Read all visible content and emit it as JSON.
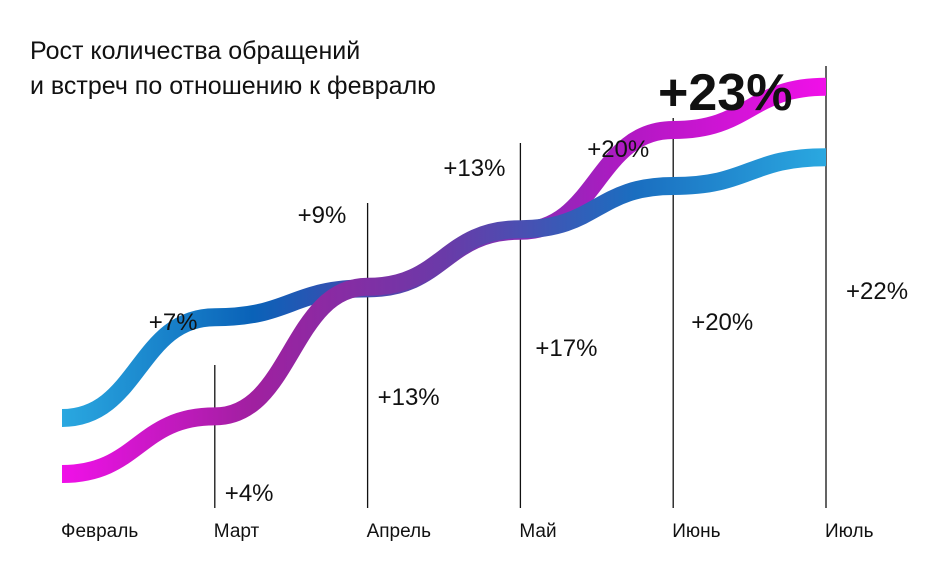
{
  "title_lines": [
    "Рост количества обращений",
    "и встреч по отношению к февралю"
  ],
  "chart_data": {
    "type": "line",
    "categories": [
      "Февраль",
      "Март",
      "Апрель",
      "Май",
      "Июнь",
      "Июль"
    ],
    "series": [
      {
        "values": [
          0,
          7,
          9,
          13,
          20,
          23
        ],
        "labels": [
          "",
          "+7%",
          "+9%",
          "+13%",
          "+20%",
          "+23%"
        ],
        "gradient": [
          "#2aa8e0",
          "#0a62b8",
          "#6a3aa8",
          "#b318c4",
          "#f010e8"
        ]
      },
      {
        "values": [
          0,
          4,
          13,
          17,
          20,
          22
        ],
        "labels": [
          "",
          "+4%",
          "+13%",
          "+17%",
          "+20%",
          "+22%"
        ],
        "gradient": [
          "#f010e8",
          "#a020a0",
          "#6a3aa8",
          "#1a6ec0",
          "#2aa8e0"
        ]
      }
    ]
  }
}
